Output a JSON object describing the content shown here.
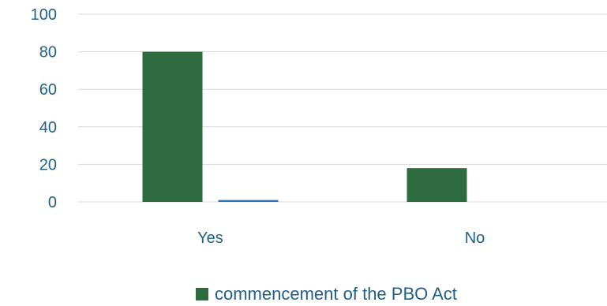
{
  "chart_data": {
    "type": "bar",
    "categories": [
      "Yes",
      "No"
    ],
    "series": [
      {
        "name": "commencement of the PBO Act",
        "values": [
          80,
          18
        ],
        "color": "#2e6b3e"
      },
      {
        "values": [
          1,
          0
        ],
        "color": "#2e75b6"
      }
    ],
    "ylim": [
      0,
      100
    ],
    "yticks": [
      0,
      20,
      40,
      60,
      80,
      100
    ],
    "grid": true,
    "legend": "bottom",
    "text_color": "#1f5f8b",
    "grid_color": "#d9d9d9"
  }
}
